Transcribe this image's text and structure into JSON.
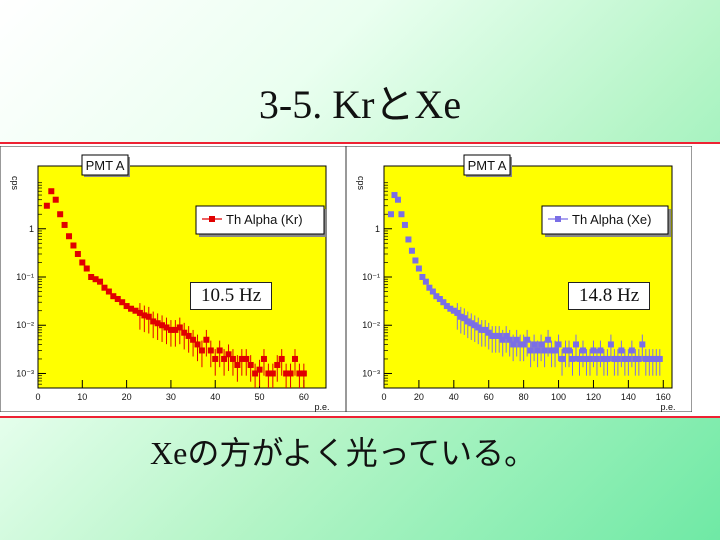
{
  "slide": {
    "title": "3-5. KrとXe",
    "caption": "Xeの方がよく光っている。"
  },
  "colors": {
    "plot_background": "#ffff00",
    "kr_series": "#e00000",
    "xe_series": "#7a6ee6",
    "strip_border": "#e22233"
  },
  "chart_data": [
    {
      "type": "scatter",
      "title": "PMT A",
      "ylabel": "cps",
      "xlabel": "p.e.",
      "y_scale": "log",
      "xlim": [
        0,
        65
      ],
      "ylim": [
        0.0005,
        20
      ],
      "x_ticks": [
        "0",
        "10",
        "20",
        "30",
        "40",
        "50",
        "60"
      ],
      "y_ticks": [
        "1",
        "10⁻¹",
        "10⁻²",
        "10⁻³"
      ],
      "legend": "top-right",
      "annotation": "10.5 Hz",
      "series": [
        {
          "name": "Th Alpha (Kr)",
          "x": [
            2,
            3,
            4,
            5,
            6,
            7,
            8,
            9,
            10,
            11,
            12,
            13,
            14,
            15,
            16,
            17,
            18,
            19,
            20,
            21,
            22,
            23,
            24,
            25,
            26,
            27,
            28,
            29,
            30,
            31,
            32,
            33,
            34,
            35,
            36,
            37,
            38,
            39,
            40,
            41,
            42,
            43,
            44,
            45,
            46,
            47,
            48,
            49,
            50,
            51,
            52,
            53,
            54,
            55,
            56,
            57,
            58,
            59,
            60
          ],
          "y": [
            3,
            6,
            4,
            2,
            1.2,
            0.7,
            0.45,
            0.3,
            0.2,
            0.15,
            0.1,
            0.09,
            0.08,
            0.06,
            0.05,
            0.04,
            0.035,
            0.03,
            0.025,
            0.022,
            0.02,
            0.018,
            0.016,
            0.015,
            0.012,
            0.011,
            0.01,
            0.009,
            0.008,
            0.008,
            0.009,
            0.007,
            0.006,
            0.005,
            0.004,
            0.003,
            0.005,
            0.003,
            0.002,
            0.003,
            0.002,
            0.0025,
            0.002,
            0.0015,
            0.002,
            0.002,
            0.0015,
            0.001,
            0.0012,
            0.002,
            0.001,
            0.001,
            0.0015,
            0.002,
            0.001,
            0.001,
            0.002,
            0.001,
            0.001
          ]
        }
      ]
    },
    {
      "type": "scatter",
      "title": "PMT A",
      "ylabel": "cps",
      "xlabel": "p.e.",
      "y_scale": "log",
      "xlim": [
        0,
        165
      ],
      "ylim": [
        0.0005,
        20
      ],
      "x_ticks": [
        "0",
        "20",
        "40",
        "60",
        "80",
        "100",
        "120",
        "140",
        "160"
      ],
      "y_ticks": [
        "1",
        "10⁻¹",
        "10⁻²",
        "10⁻³"
      ],
      "legend": "top-right",
      "annotation": "14.8 Hz",
      "series": [
        {
          "name": "Th Alpha (Xe)",
          "x": [
            4,
            6,
            8,
            10,
            12,
            14,
            16,
            18,
            20,
            22,
            24,
            26,
            28,
            30,
            32,
            34,
            36,
            38,
            40,
            42,
            44,
            46,
            48,
            50,
            52,
            54,
            56,
            58,
            60,
            62,
            64,
            66,
            68,
            70,
            72,
            74,
            76,
            78,
            80,
            82,
            84,
            86,
            88,
            90,
            92,
            94,
            96,
            98,
            100,
            102,
            104,
            106,
            108,
            110,
            112,
            114,
            116,
            118,
            120,
            122,
            124,
            126,
            128,
            130,
            132,
            134,
            136,
            138,
            140,
            142,
            144,
            146,
            148,
            150,
            152,
            154,
            156,
            158
          ],
          "y": [
            2,
            5,
            4,
            2,
            1.2,
            0.6,
            0.35,
            0.22,
            0.15,
            0.1,
            0.08,
            0.06,
            0.05,
            0.04,
            0.035,
            0.03,
            0.025,
            0.022,
            0.02,
            0.018,
            0.015,
            0.014,
            0.012,
            0.011,
            0.01,
            0.009,
            0.008,
            0.008,
            0.007,
            0.006,
            0.006,
            0.006,
            0.005,
            0.006,
            0.005,
            0.004,
            0.005,
            0.004,
            0.004,
            0.005,
            0.003,
            0.004,
            0.003,
            0.004,
            0.003,
            0.005,
            0.003,
            0.003,
            0.004,
            0.002,
            0.003,
            0.003,
            0.002,
            0.004,
            0.002,
            0.003,
            0.002,
            0.002,
            0.003,
            0.002,
            0.003,
            0.002,
            0.002,
            0.004,
            0.002,
            0.002,
            0.003,
            0.002,
            0.002,
            0.003,
            0.002,
            0.002,
            0.004,
            0.002,
            0.002,
            0.002,
            0.002,
            0.002
          ]
        }
      ]
    }
  ]
}
